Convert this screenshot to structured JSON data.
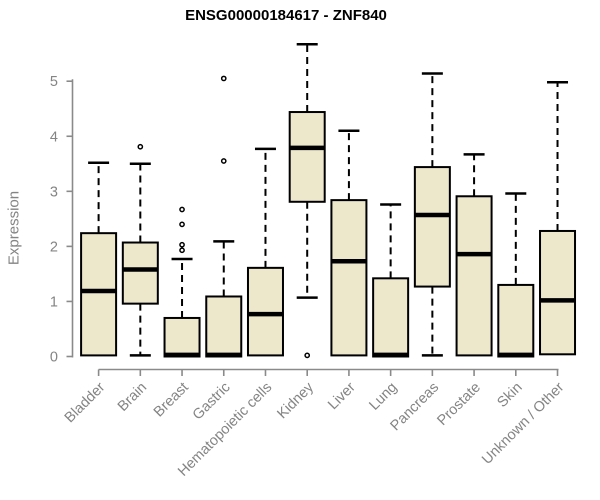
{
  "title": "ENSG00000184617 - ZNF840",
  "chart_data": {
    "type": "boxplot",
    "title": "ENSG00000184617 - ZNF840",
    "xlabel": "",
    "ylabel": "Expression",
    "ylim": [
      0,
      5
    ],
    "yticks": [
      0,
      1,
      2,
      3,
      4,
      5
    ],
    "grid": false,
    "legend": "none",
    "categories": [
      "Bladder",
      "Brain",
      "Breast",
      "Gastric",
      "Hematopoietic cells",
      "Kidney",
      "Liver",
      "Lung",
      "Pancreas",
      "Prostate",
      "Skin",
      "Unknown / Other"
    ],
    "series": [
      {
        "name": "Bladder",
        "whisker_low": 0.02,
        "q1": 0.02,
        "median": 1.19,
        "q3": 2.24,
        "whisker_high": 3.52,
        "outliers": []
      },
      {
        "name": "Brain",
        "whisker_low": 0.02,
        "q1": 0.96,
        "median": 1.58,
        "q3": 2.07,
        "whisker_high": 3.5,
        "outliers": [
          3.81
        ]
      },
      {
        "name": "Breast",
        "whisker_low": 0.0,
        "q1": 0.0,
        "median": 0.03,
        "q3": 0.7,
        "whisker_high": 1.77,
        "outliers": [
          2.67,
          2.4,
          2.03,
          1.93
        ]
      },
      {
        "name": "Gastric",
        "whisker_low": 0.0,
        "q1": 0.0,
        "median": 0.03,
        "q3": 1.09,
        "whisker_high": 2.09,
        "outliers": [
          5.05,
          3.55
        ]
      },
      {
        "name": "Hematopoietic cells",
        "whisker_low": 0.02,
        "q1": 0.02,
        "median": 0.77,
        "q3": 1.61,
        "whisker_high": 3.77,
        "outliers": []
      },
      {
        "name": "Kidney",
        "whisker_low": 1.07,
        "q1": 2.81,
        "median": 3.79,
        "q3": 4.44,
        "whisker_high": 5.67,
        "outliers": [
          0.02
        ]
      },
      {
        "name": "Liver",
        "whisker_low": 0.02,
        "q1": 0.02,
        "median": 1.73,
        "q3": 2.84,
        "whisker_high": 4.1,
        "outliers": []
      },
      {
        "name": "Lung",
        "whisker_low": 0.0,
        "q1": 0.0,
        "median": 0.03,
        "q3": 1.42,
        "whisker_high": 2.76,
        "outliers": []
      },
      {
        "name": "Pancreas",
        "whisker_low": 0.02,
        "q1": 1.27,
        "median": 2.57,
        "q3": 3.44,
        "whisker_high": 5.14,
        "outliers": []
      },
      {
        "name": "Prostate",
        "whisker_low": 0.02,
        "q1": 0.02,
        "median": 1.86,
        "q3": 2.91,
        "whisker_high": 3.67,
        "outliers": []
      },
      {
        "name": "Skin",
        "whisker_low": 0.0,
        "q1": 0.0,
        "median": 0.03,
        "q3": 1.3,
        "whisker_high": 2.96,
        "outliers": []
      },
      {
        "name": "Unknown / Other",
        "whisker_low": 0.04,
        "q1": 0.04,
        "median": 1.02,
        "q3": 2.28,
        "whisker_high": 4.98,
        "outliers": []
      }
    ]
  },
  "colors": {
    "box_fill": "#EDE7CC",
    "box_stroke": "#000000",
    "median": "#000000",
    "whisker": "#000000",
    "axis": "#8A8A8A",
    "tick_label": "#848484",
    "title": "#000000",
    "background": "#FFFFFF"
  }
}
